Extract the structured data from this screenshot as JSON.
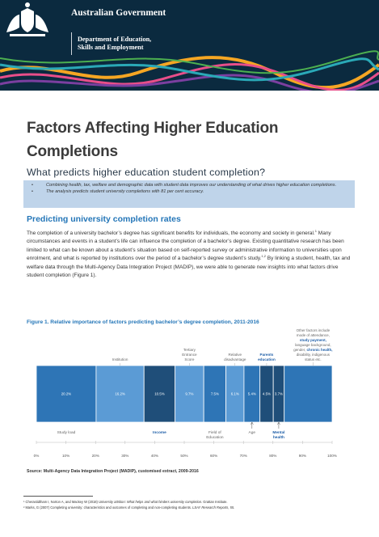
{
  "header": {
    "government": "Australian Government",
    "department_lines": [
      "Department of Education,",
      "Skills and Employment"
    ]
  },
  "title": "Factors Affecting Higher Education Completions",
  "subtitle": "What predicts higher education student completion?",
  "key_points": [
    "Combining health, tax, welfare and demographic data with student data improves our understanding of what drives higher education completions.",
    "The analysis predicts student university completions with 81 per cent accuracy."
  ],
  "section_heading": "Predicting university completion rates",
  "body": {
    "p1": "The completion of a university bachelor’s degree has significant benefits for individuals, the economy and society in general.",
    "fn1": "1",
    "p2": " Many circumstances and events in a student’s life can influence the completion of a bachelor’s degree. Existing quantitative research has been limited to what can be known about a student’s situation based on self-reported survey or administrative information to universities upon enrolment, and what is reported by institutions over the period of a bachelor’s degree student’s study.",
    "fn2": "1,2",
    "p3": " By linking a student, health, tax and welfare data through the Multi-Agency Data Integration Project (MADIP), we were able to generate new insights into what factors drive student completion (Figure 1)."
  },
  "figure": {
    "title": "Figure 1. Relative importance of factors predicting bachelor’s degree completion, 2011-2016",
    "source": "Source: Multi-Agency Data Integration Project (MADIP), customised extract, 2009-2016"
  },
  "chart_data": {
    "type": "bar",
    "orientation": "horizontal-stacked",
    "axis_ticks": [
      "0%",
      "10%",
      "20%",
      "30%",
      "40%",
      "50%",
      "60%",
      "70%",
      "80%",
      "90%",
      "100%"
    ],
    "xlim": [
      0,
      100
    ],
    "segments": [
      {
        "label": "Study load",
        "value": 20.2,
        "value_label": "20.2%",
        "color": "#2e75b6",
        "label_position": "below"
      },
      {
        "label": "Institution",
        "value": 16.2,
        "value_label": "16.2%",
        "color": "#5b9bd5",
        "label_position": "above"
      },
      {
        "label": "Income",
        "value": 10.5,
        "value_label": "10.5%",
        "color": "#1f4e79",
        "label_position": "below",
        "highlight": true
      },
      {
        "label": "Tertiary Entrance Score",
        "value": 9.7,
        "value_label": "9.7%",
        "color": "#5b9bd5",
        "label_position": "above"
      },
      {
        "label": "Field of Education",
        "value": 7.5,
        "value_label": "7.5%",
        "color": "#2e75b6",
        "label_position": "below"
      },
      {
        "label": "Relative disadvantage",
        "value": 6.1,
        "value_label": "6.1%",
        "color": "#5b9bd5",
        "label_position": "above"
      },
      {
        "label": "Age",
        "value": 5.4,
        "value_label": "5.4%",
        "color": "#2e75b6",
        "label_position": "below"
      },
      {
        "label": "Parents education",
        "value": 4.5,
        "value_label": "4.5%",
        "color": "#1f4e79",
        "label_position": "above",
        "highlight": true
      },
      {
        "label": "Mental health",
        "value": 3.7,
        "value_label": "3.7%",
        "color": "#1f4e79",
        "label_position": "below",
        "highlight": true
      },
      {
        "label": "Other factors",
        "value": 16.2,
        "value_label": "",
        "color": "#2e75b6",
        "label_position": "above"
      }
    ],
    "other_factors_note": {
      "lines": [
        [
          {
            "t": "Other factors include",
            "h": false
          }
        ],
        [
          {
            "t": "mode of attendance,",
            "h": false
          }
        ],
        [
          {
            "t": "study payment,",
            "h": true
          }
        ],
        [
          {
            "t": "language background,",
            "h": false
          }
        ],
        [
          {
            "t": "gender, ",
            "h": false
          },
          {
            "t": "chronic health,",
            "h": true
          }
        ],
        [
          {
            "t": "disability, indigenous",
            "h": false
          }
        ],
        [
          {
            "t": "status etc.",
            "h": false
          }
        ]
      ]
    },
    "colors": {
      "accent": "#2476b8",
      "highlight_text": "#1f5fa8"
    }
  },
  "footnotes": [
    {
      "plain": "¹ Cherastidtham I, Norton A, and Mackey W (2018) ",
      "italic": "University attrition: What helps and what hinders university completion.",
      "tail": " Grattan Institute."
    },
    {
      "plain": "² Marks, G (2007) Completing university: characteristics and outcomes of completing and non-completing students. ",
      "italic": "LSAY Research Reports, 55.",
      "tail": ""
    }
  ]
}
